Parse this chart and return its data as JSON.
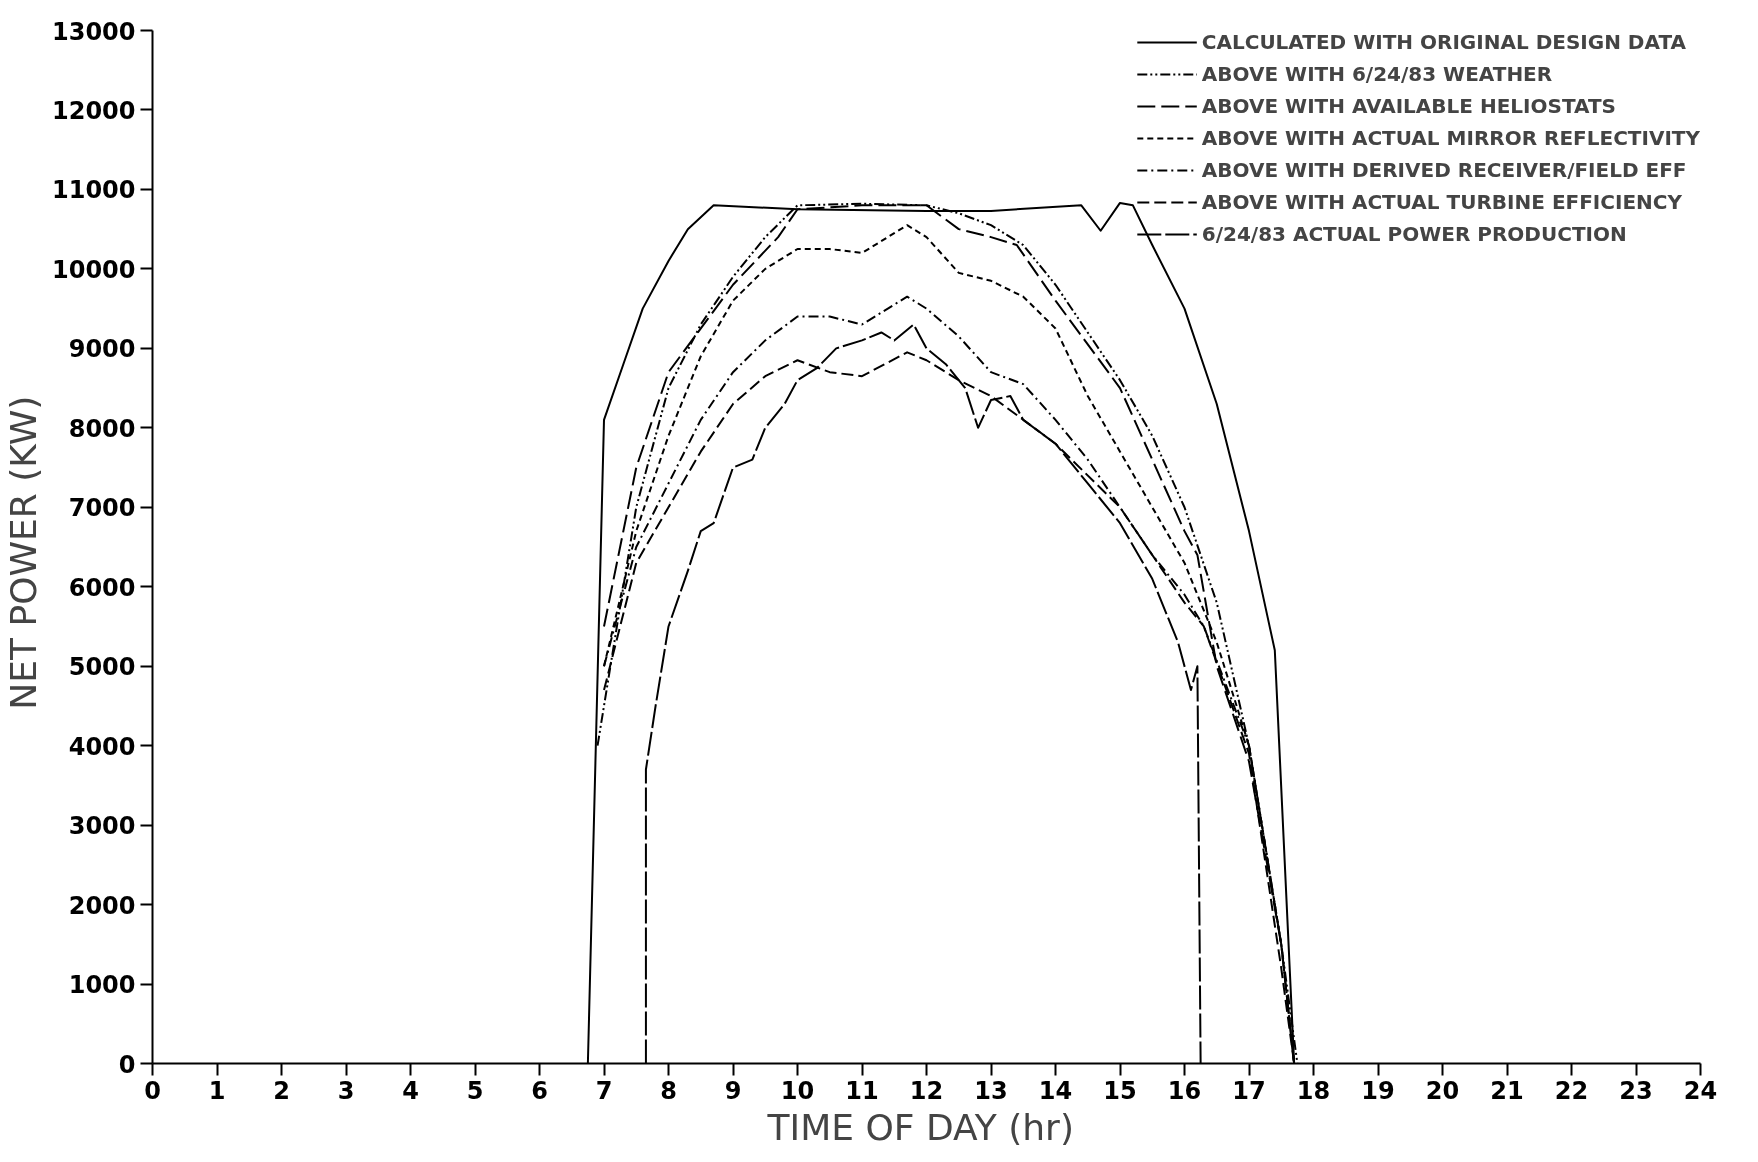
{
  "chart_data": {
    "type": "line",
    "xlabel": "TIME OF DAY  (hr)",
    "ylabel": "NET POWER  (KW)",
    "xlim": [
      0,
      24
    ],
    "ylim": [
      0,
      13000
    ],
    "xticks": [
      0,
      1,
      2,
      3,
      4,
      5,
      6,
      7,
      8,
      9,
      10,
      11,
      12,
      13,
      14,
      15,
      16,
      17,
      18,
      19,
      20,
      21,
      22,
      23,
      24
    ],
    "yticks": [
      0,
      1000,
      2000,
      3000,
      4000,
      5000,
      6000,
      7000,
      8000,
      9000,
      10000,
      11000,
      12000,
      13000
    ],
    "grid": false,
    "legend": "top right",
    "series": [
      {
        "name": "CALCULATED WITH ORIGINAL DESIGN DATA",
        "color": "#000000",
        "line_style": "solid",
        "x": [
          6.75,
          7.0,
          7.3,
          7.6,
          8.0,
          8.3,
          8.7,
          10,
          12,
          13,
          14.4,
          14.7,
          15.0,
          15.2,
          15.5,
          16,
          16.5,
          17,
          17.4,
          17.7
        ],
        "values": [
          0,
          8100,
          8800,
          9500,
          10100,
          10500,
          10800,
          10750,
          10730,
          10730,
          10800,
          10480,
          10830,
          10800,
          10300,
          9500,
          8300,
          6700,
          5200,
          0
        ]
      },
      {
        "name": "ABOVE WITH 6/24/83 WEATHER",
        "color": "#000000",
        "line_style": "dashdotdot",
        "x": [
          6.9,
          7.5,
          8,
          8.5,
          9,
          9.5,
          10,
          11,
          12,
          12.5,
          13,
          13.5,
          14,
          14.5,
          15,
          15.5,
          16,
          16.5,
          17,
          17.5,
          17.75
        ],
        "values": [
          4000,
          7000,
          8500,
          9300,
          9900,
          10400,
          10800,
          10820,
          10800,
          10700,
          10550,
          10300,
          9800,
          9200,
          8600,
          7900,
          7000,
          5800,
          4000,
          1500,
          0
        ]
      },
      {
        "name": "ABOVE WITH AVAILABLE HELIOSTATS",
        "color": "#000000",
        "line_style": "longdash",
        "x": [
          7,
          7.5,
          8,
          9,
          9.7,
          10,
          11,
          12,
          12.5,
          13,
          13.4,
          14,
          15,
          15.5,
          16,
          16.2,
          16.5,
          17,
          17.5,
          17.7
        ],
        "values": [
          5500,
          7500,
          8700,
          9800,
          10400,
          10750,
          10800,
          10800,
          10500,
          10400,
          10300,
          9600,
          8500,
          7600,
          6700,
          6400,
          5000,
          3800,
          1500,
          0
        ]
      },
      {
        "name": "ABOVE WITH ACTUAL MIRROR REFLECTIVITY",
        "color": "#000000",
        "line_style": "dashed",
        "x": [
          7,
          7.5,
          8,
          8.5,
          9,
          9.5,
          10,
          10.5,
          11,
          11.5,
          11.7,
          12,
          12.5,
          13,
          13.5,
          14,
          14.5,
          15,
          15.5,
          16,
          16.5,
          17,
          17.5,
          17.7
        ],
        "values": [
          5000,
          6700,
          7900,
          8900,
          9600,
          10000,
          10250,
          10250,
          10200,
          10450,
          10550,
          10400,
          9950,
          9850,
          9650,
          9250,
          8400,
          7700,
          7000,
          6300,
          5300,
          4000,
          1500,
          0
        ]
      },
      {
        "name": "ABOVE WITH DERIVED RECEIVER/FIELD EFF",
        "color": "#000000",
        "line_style": "dashdot",
        "x": [
          7,
          7.5,
          8,
          8.5,
          9,
          9.5,
          10,
          10.5,
          11,
          11.7,
          12,
          12.5,
          13,
          13.5,
          14,
          14.5,
          15,
          15.5,
          16,
          16.3,
          17,
          17.5,
          17.7
        ],
        "values": [
          5000,
          6500,
          7300,
          8100,
          8700,
          9100,
          9400,
          9400,
          9300,
          9650,
          9500,
          9150,
          8700,
          8550,
          8100,
          7600,
          7000,
          6400,
          5900,
          5500,
          4000,
          1500,
          0
        ]
      },
      {
        "name": "ABOVE WITH ACTUAL TURBINE EFFICIENCY",
        "color": "#000000",
        "line_style": "dashed2",
        "x": [
          7,
          7.5,
          8,
          8.5,
          9,
          9.5,
          10,
          10.5,
          11,
          11.7,
          12,
          12.5,
          13,
          14,
          15,
          16,
          16.3,
          17,
          17.5,
          17.7
        ],
        "values": [
          4700,
          6300,
          7000,
          7700,
          8300,
          8650,
          8850,
          8700,
          8650,
          8950,
          8850,
          8600,
          8400,
          7800,
          7000,
          5800,
          5500,
          3900,
          1200,
          0
        ]
      },
      {
        "name": "6/24/83 ACTUAL POWER PRODUCTION",
        "color": "#000000",
        "line_style": "longdash2",
        "x": [
          7.65,
          7.65,
          7.8,
          8,
          8.3,
          8.5,
          8.7,
          9,
          9.3,
          9.5,
          9.8,
          10,
          10.3,
          10.6,
          11,
          11.3,
          11.5,
          11.8,
          12,
          12.3,
          12.6,
          12.8,
          13,
          13.3,
          13.5,
          14,
          14.5,
          15,
          15.5,
          15.9,
          16.1,
          16.2,
          16.25
        ],
        "values": [
          0,
          3700,
          4500,
          5500,
          6200,
          6700,
          6800,
          7500,
          7600,
          8000,
          8300,
          8600,
          8750,
          9000,
          9100,
          9200,
          9100,
          9300,
          9000,
          8800,
          8500,
          8000,
          8350,
          8400,
          8100,
          7800,
          7300,
          6800,
          6100,
          5300,
          4700,
          5000,
          0
        ]
      }
    ]
  }
}
